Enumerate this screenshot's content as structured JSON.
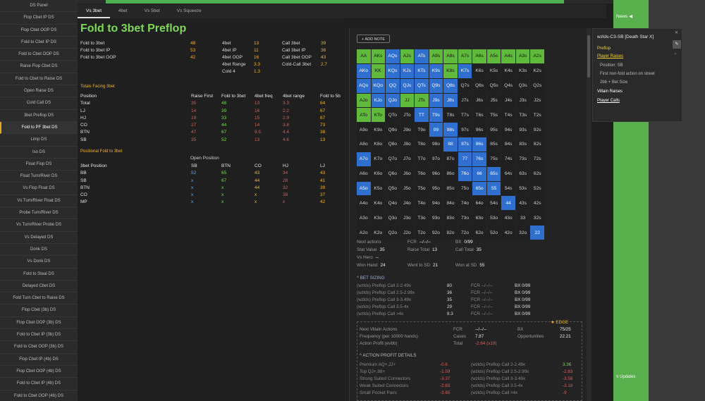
{
  "sidebar": {
    "items": [
      "DS Panel",
      "Flop Cbet IP DS",
      "Flop Cbet OOP DS",
      "Fold to Cbet IP DS",
      "Fold to Cbet OOP DS",
      "Raise Flop Cbet DS",
      "Fold to Cbet to Raise DS",
      "Open Raise DS",
      "Cold Call DS",
      "3bet Preflop DS",
      "Fold to PF 3bet DS",
      "Limp DS",
      "Iso DS",
      "Float Flop DS",
      "Float Turn/River DS",
      "Vs Flop Float DS",
      "Vs Turn/River Float DS",
      "Probe Turn/River DS",
      "Vs Turn/River Probe DS",
      "Vs Delayed DS",
      "Donk DS",
      "Vs Donk DS",
      "Fold to Steal DS",
      "Delayed Cbet DS",
      "Fold Turn Cbet to Raise DS",
      "Flop Cbet (3b) DS",
      "Flop Cbet OOP (3b) DS",
      "Fold to Cbet IP (3b) DS",
      "Fold to Cbet OOP (3b) DS",
      "Flop Cbet IP (4b) DS",
      "Flop Cbet OOP (4b) DS",
      "Fold to Cbet IP (4b) DS",
      "Fold to Cbet OOP (4b) DS"
    ],
    "active_index": 10
  },
  "tabs": [
    "Vs 3bet",
    "4bet",
    "Vs 5bet",
    "Vs Squeeze"
  ],
  "title": "Fold to 3bet Preflop",
  "stats": {
    "c1": [
      {
        "l": "Fold to 3bet",
        "v": "48"
      },
      {
        "l": "Fold to 3bet IP",
        "v": "53"
      },
      {
        "l": "Fold to 3bet OOP",
        "v": "42"
      }
    ],
    "c2": [
      {
        "l": "4bet",
        "v": "13"
      },
      {
        "l": "4bet IP",
        "v": "11"
      },
      {
        "l": "4bet OOP",
        "v": "16"
      },
      {
        "l": "4bet Range",
        "v": "3.3"
      },
      {
        "l": "Cold 4",
        "v": "1.3"
      }
    ],
    "c3": [
      {
        "l": "Call 3bet",
        "v": "39"
      },
      {
        "l": "Call 3bet IP",
        "v": "36"
      },
      {
        "l": "Call 3bet OOP",
        "v": "43"
      },
      {
        "l": "Cold-Call 3bet",
        "v": "2.7"
      }
    ]
  },
  "facing": {
    "section": "Totals Facing 3bet",
    "headers": [
      "Position",
      "Raise First",
      "Fold to 3bet",
      "4bet freq",
      "4bet range",
      "Fold to 5b"
    ],
    "rows": [
      [
        "Total",
        "35",
        "48",
        "13",
        "3.3",
        "64"
      ],
      [
        "LJ",
        "14",
        "39",
        "16",
        "2.2",
        "67"
      ],
      [
        "HJ",
        "19",
        "33",
        "15",
        "2.9",
        "87"
      ],
      [
        "CO",
        "27",
        "44",
        "14",
        "3.8",
        "73"
      ],
      [
        "BTN",
        "47",
        "67",
        "9.5",
        "4.4",
        "38"
      ],
      [
        "SB",
        "35",
        "52",
        "13",
        "4.6",
        "13"
      ]
    ]
  },
  "positional": {
    "section": "Positional Fold to 3bet",
    "open_label": "Open Position",
    "headers": [
      "3bet Position",
      "SB",
      "BTN",
      "CO",
      "HJ",
      "LJ"
    ],
    "rows": [
      [
        "BB",
        "52",
        "65",
        "43",
        "34",
        "43"
      ],
      [
        "SB",
        "x",
        "67",
        "44",
        "28",
        "41"
      ],
      [
        "BTN",
        "x",
        "x",
        "44",
        "32",
        "39"
      ],
      [
        "CO",
        "x",
        "x",
        "x",
        "38",
        "37"
      ],
      [
        "MP",
        "x",
        "x",
        "x",
        "x",
        "42"
      ]
    ]
  },
  "panel": {
    "add_note": "ADD NOTE",
    "grid": [
      [
        "AA",
        "AKs",
        "AQs",
        "AJs",
        "ATs",
        "A9s",
        "A8s",
        "A7s",
        "A6s",
        "A5s",
        "A4s",
        "A3s",
        "A2s"
      ],
      [
        "AKo",
        "KK",
        "KQs",
        "KJs",
        "KTs",
        "K9s",
        "K8s",
        "K7s",
        "K6s",
        "K5s",
        "K4s",
        "K3s",
        "K2s"
      ],
      [
        "AQo",
        "KQo",
        "QQ",
        "QJs",
        "QTs",
        "Q9s",
        "Q8s",
        "Q7s",
        "Q6s",
        "Q5s",
        "Q4s",
        "Q3s",
        "Q2s"
      ],
      [
        "AJo",
        "KJo",
        "QJo",
        "JJ",
        "JTs",
        "J9s",
        "J8s",
        "J7s",
        "J6s",
        "J5s",
        "J4s",
        "J3s",
        "J2s"
      ],
      [
        "ATo",
        "KTo",
        "QTo",
        "JTo",
        "TT",
        "T9s",
        "T8s",
        "T7s",
        "T6s",
        "T5s",
        "T4s",
        "T3s",
        "T2s"
      ],
      [
        "A9o",
        "K9o",
        "Q9o",
        "J9o",
        "T9o",
        "99",
        "98s",
        "97s",
        "96s",
        "95s",
        "94s",
        "93s",
        "92s"
      ],
      [
        "A8o",
        "K8o",
        "Q8o",
        "J8o",
        "T8o",
        "98o",
        "88",
        "87s",
        "86s",
        "85s",
        "84s",
        "83s",
        "82s"
      ],
      [
        "A7o",
        "K7o",
        "Q7o",
        "J7o",
        "T7o",
        "97o",
        "87o",
        "77",
        "76s",
        "75s",
        "74s",
        "73s",
        "72s"
      ],
      [
        "A6o",
        "K6o",
        "Q6o",
        "J6o",
        "T6o",
        "96o",
        "86o",
        "76o",
        "66",
        "65s",
        "64s",
        "63s",
        "62s"
      ],
      [
        "A5o",
        "K5o",
        "Q5o",
        "J5o",
        "T5o",
        "95o",
        "85o",
        "75o",
        "65o",
        "55",
        "54s",
        "53s",
        "52s"
      ],
      [
        "A4o",
        "K4o",
        "Q4o",
        "J4o",
        "T4o",
        "94o",
        "84o",
        "74o",
        "64o",
        "54o",
        "44",
        "43s",
        "42s"
      ],
      [
        "A3o",
        "K3o",
        "Q3o",
        "J3o",
        "T3o",
        "93o",
        "83o",
        "73o",
        "63o",
        "53o",
        "43o",
        "33",
        "32s"
      ],
      [
        "A2o",
        "K2o",
        "Q2o",
        "J2o",
        "T2o",
        "92o",
        "82o",
        "72o",
        "62o",
        "52o",
        "42o",
        "32o",
        "22"
      ]
    ],
    "stats": [
      {
        "l": "Next actions",
        "v": ""
      },
      {
        "l": "FCR",
        "v": "--/--/--"
      },
      {
        "l": "BX",
        "v": "0/99"
      },
      {
        "l": "Stat Value",
        "v": "35"
      },
      {
        "l": "Raise Total",
        "v": "13"
      },
      {
        "l": "Call Total",
        "v": "35"
      },
      {
        "l": "Vs Hero",
        "v": "--"
      },
      {
        "l": "Won Hand",
        "v": "24"
      },
      {
        "l": "Went to SD",
        "v": "21"
      },
      {
        "l": "Won at SD",
        "v": "55"
      }
    ],
    "bet_sizing_title": "BET SIZING",
    "bet_sizing": [
      [
        "(wzlds) Preflop Call 2-2.49x",
        "80",
        "FCR --/--/--",
        "BX 0/99"
      ],
      [
        "(wzlds) Preflop Call 2.5-2.99x",
        "36",
        "FCR --/--/--",
        "BX 0/99"
      ],
      [
        "(wzlds) Preflop Call 3-3.49x",
        "35",
        "FCR --/--/--",
        "BX 0/99"
      ],
      [
        "(wzlds) Preflop Call 3.5-4x",
        "29",
        "FCR --/--/--",
        "BX 0/99"
      ],
      [
        "(wzlds) Preflop Call >4x",
        "8.3",
        "FCR --/--/--",
        "BX 0/99"
      ]
    ],
    "edge_label": "EDGE",
    "edge": {
      "next": "Next Villain Actions",
      "freq": "Frequency (per 10000 hands)",
      "profit": "Action Profit (evbb)",
      "fcr_l": "FCR",
      "fcr_v": "--/--/--",
      "cases_l": "Cases",
      "cases_v": "7.87",
      "total_l": "Total",
      "total_v": "-2.64 (x19)",
      "bx_l": "BX",
      "bx_v": "75/25",
      "opp_l": "Opportunities",
      "opp_v": "22.21"
    },
    "apd_title": "ACTION PROFIT DETAILS",
    "apd": [
      [
        "Premium AQ+,JJ+",
        "-0.6",
        "(wzlds) Preflop Call 2-2.49x",
        "3.36"
      ],
      [
        "Top QJ+,88+",
        "-1.59",
        "(wzlds) Preflop Call 2.5-2.99x",
        "-2.83"
      ],
      [
        "Strong Suited Connectors",
        "-3.37",
        "(wzlds) Preflop Call 3-3.49x",
        "-3.58"
      ],
      [
        "Weak Suited Connectors",
        "-2.83",
        "(wzlds) Preflop Call 3.5-4x",
        "-3.18"
      ],
      [
        "Small Pocket Pairs",
        "-3.65",
        "(wzlds) Preflop Call >4x",
        "-9"
      ]
    ]
  },
  "tooltip": {
    "title": "wzlds-C3-SB [Death Star X]",
    "preflop": "Preflop",
    "player_raises": "Player Raises",
    "lines": [
      "Position: SB",
      "First non-fold action on street",
      "2bb + Bet Size"
    ],
    "villain": "Villain Raises",
    "calls": "Player Calls"
  },
  "news": {
    "label": "News",
    "updates": "Updates"
  },
  "colors": {
    "green": "#5fb93a",
    "blue": "#2f6fd0",
    "accent": "#f0b429"
  }
}
